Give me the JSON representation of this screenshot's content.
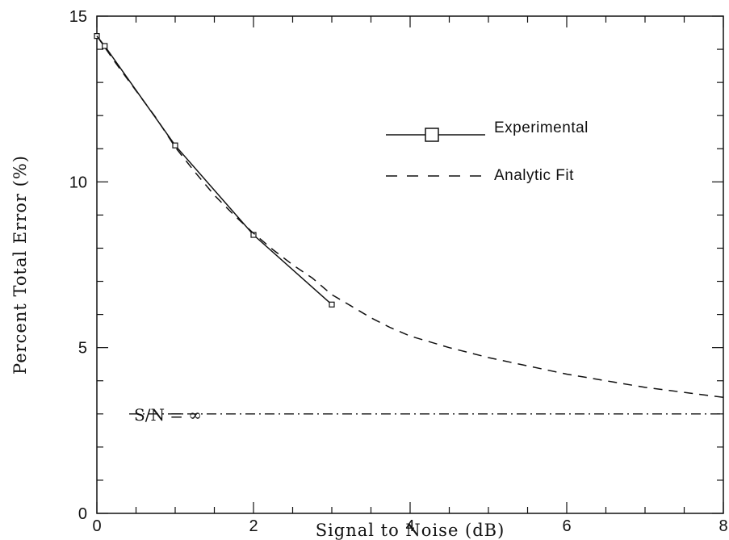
{
  "chart_data": {
    "type": "line",
    "title": "",
    "xlabel": "Signal to Noise (dB)",
    "ylabel": "Percent Total Error (%)",
    "xlim": [
      0,
      8
    ],
    "ylim": [
      0,
      15
    ],
    "x_ticks": [
      "0",
      "2",
      "4",
      "6",
      "8"
    ],
    "y_ticks": [
      "0",
      "5",
      "10",
      "15"
    ],
    "grid": false,
    "legend_position": "upper-right",
    "series": [
      {
        "name": "Experimental",
        "style": "solid",
        "marker": "square",
        "x": [
          0.0,
          0.1,
          1.0,
          2.0,
          3.0
        ],
        "y": [
          14.4,
          14.1,
          11.1,
          8.4,
          6.3
        ]
      },
      {
        "name": "Analytic Fit",
        "style": "dashed",
        "x": [
          0,
          0.25,
          0.5,
          0.75,
          1.0,
          1.25,
          1.5,
          1.75,
          2.0,
          2.25,
          2.5,
          2.75,
          3.0,
          3.25,
          3.5,
          3.75,
          4.0,
          4.5,
          5.0,
          5.5,
          6.0,
          6.5,
          7.0,
          7.5,
          8.0
        ],
        "y": [
          14.4,
          13.55,
          12.75,
          11.95,
          11.05,
          10.3,
          9.6,
          9.0,
          8.45,
          7.95,
          7.5,
          7.1,
          6.6,
          6.25,
          5.9,
          5.6,
          5.35,
          5.0,
          4.7,
          4.45,
          4.2,
          4.0,
          3.8,
          3.65,
          3.5
        ]
      }
    ],
    "reference_line": {
      "label": "S/N = ∞",
      "y": 3.0,
      "style": "dash-dot"
    }
  },
  "colors": {
    "line": "#111111",
    "background": "#ffffff"
  }
}
